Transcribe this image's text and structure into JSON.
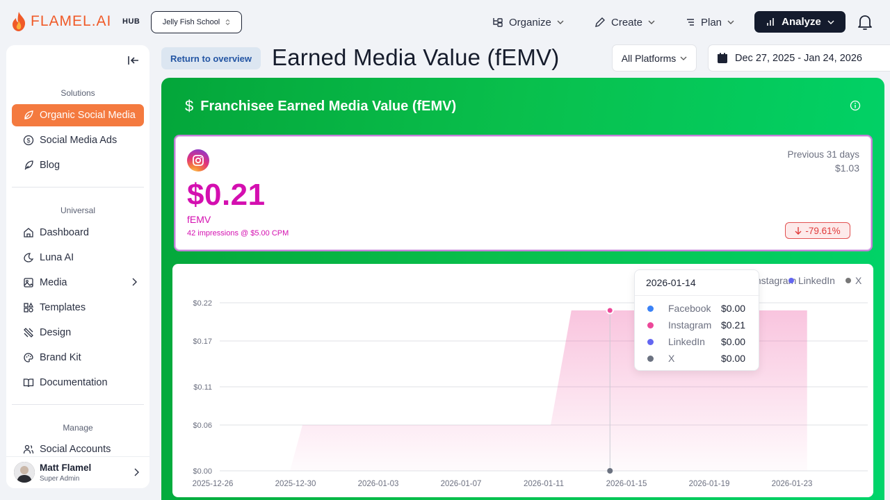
{
  "app": {
    "logo_text": "FLAMEL.AI",
    "hub_label": "HUB",
    "school_selector": "Jelly Fish School"
  },
  "nav": {
    "organize": "Organize",
    "create": "Create",
    "plan": "Plan",
    "analyze": "Analyze"
  },
  "sidebar": {
    "solutions_title": "Solutions",
    "solutions": [
      {
        "label": "Organic Social Media",
        "icon": "leaf-icon",
        "active": true
      },
      {
        "label": "Social Media Ads",
        "icon": "dollar-circle-icon"
      },
      {
        "label": "Blog",
        "icon": "feather-icon"
      }
    ],
    "universal_title": "Universal",
    "universal": [
      {
        "label": "Dashboard",
        "icon": "home-icon"
      },
      {
        "label": "Luna AI",
        "icon": "moon-icon"
      },
      {
        "label": "Media",
        "icon": "image-icon"
      },
      {
        "label": "Templates",
        "icon": "templates-icon"
      },
      {
        "label": "Design",
        "icon": "design-tools-icon"
      },
      {
        "label": "Brand Kit",
        "icon": "palette-icon"
      },
      {
        "label": "Documentation",
        "icon": "book-icon"
      }
    ],
    "manage_title": "Manage",
    "manage": [
      {
        "label": "Social Accounts",
        "icon": "users-icon"
      }
    ],
    "user": {
      "name": "Matt Flamel",
      "role": "Super Admin"
    }
  },
  "header": {
    "back_label": "Return to overview",
    "title": "Earned Media Value (fEMV)",
    "platform_filter": "All Platforms",
    "date_range": "Dec 27, 2025 - Jan 24, 2026"
  },
  "panel": {
    "title": "Franchisee Earned Media Value (fEMV)"
  },
  "metric_card": {
    "platform_icon": "instagram-icon",
    "value": "$0.21",
    "label": "fEMV",
    "sub": "42 impressions @ $5.00 CPM",
    "prev_label": "Previous 31 days",
    "prev_value": "$1.03",
    "change": "-79.61%"
  },
  "colors": {
    "facebook": "#3b82f6",
    "instagram": "#ec4899",
    "linkedin": "#6366f1",
    "x": "#6b7280",
    "panel_green": "#09bf4c"
  },
  "chart_data": {
    "type": "area",
    "legend_visible": [
      "Instagram",
      "LinkedIn",
      "X"
    ],
    "y_ticks": [
      "$0.22",
      "$0.17",
      "$0.11",
      "$0.06",
      "$0.00"
    ],
    "ylim": [
      0,
      0.22
    ],
    "x_ticks": [
      "2025-12-26",
      "2025-12-30",
      "2026-01-03",
      "2026-01-07",
      "2026-01-11",
      "2026-01-15",
      "2026-01-19",
      "2026-01-23"
    ],
    "series": [
      {
        "name": "Instagram",
        "points": [
          {
            "x": "2025-12-30",
            "y": 0.06
          },
          {
            "x": "2026-01-11",
            "y": 0.06
          },
          {
            "x": "2026-01-12",
            "y": 0.21
          },
          {
            "x": "2026-01-24",
            "y": 0.21
          }
        ]
      }
    ],
    "tooltip": {
      "date": "2026-01-14",
      "rows": [
        {
          "name": "Facebook",
          "value": "$0.00"
        },
        {
          "name": "Instagram",
          "value": "$0.21"
        },
        {
          "name": "LinkedIn",
          "value": "$0.00"
        },
        {
          "name": "X",
          "value": "$0.00"
        }
      ]
    }
  }
}
